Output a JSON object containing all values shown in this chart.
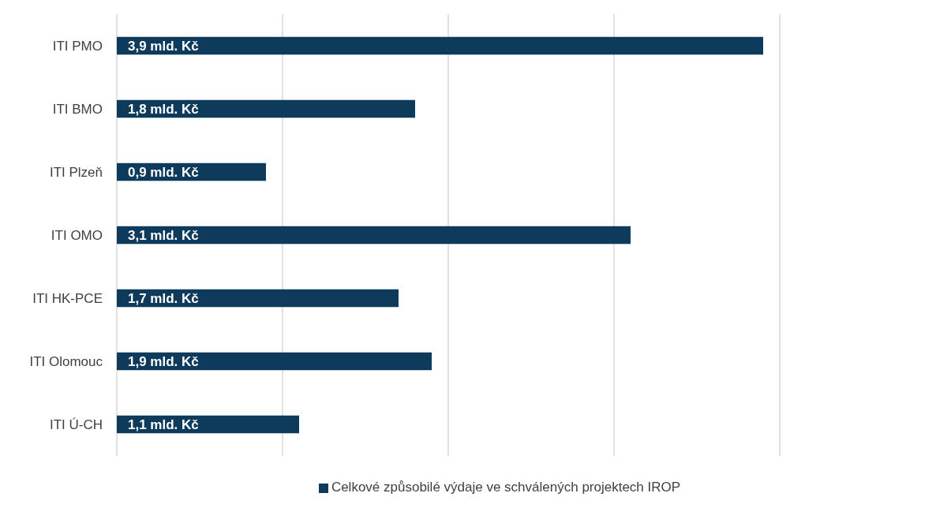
{
  "chart_data": {
    "type": "bar",
    "orientation": "horizontal",
    "categories": [
      "ITI PMO",
      "ITI BMO",
      "ITI Plzeň",
      "ITI OMO",
      "ITI HK-PCE",
      "ITI Olomouc",
      "ITI Ú-CH"
    ],
    "series": [
      {
        "name": "Celkové způsobilé výdaje ve schválených projektech IROP",
        "color": "#0e3a5c",
        "values": [
          3.9,
          1.8,
          0.9,
          3.1,
          1.7,
          1.9,
          1.1
        ],
        "value_labels": [
          "3,9 mld. Kč",
          "1,8 mld. Kč",
          "0,9 mld. Kč",
          "3,1 mld. Kč",
          "1,7 mld. Kč",
          "1,9 mld. Kč",
          "1,1 mld. Kč"
        ]
      }
    ],
    "xlim": [
      0,
      4
    ],
    "xticks": [
      {
        "value": 0,
        "label": null
      },
      {
        "value": 1,
        "label": null
      },
      {
        "value": 2,
        "label": null
      },
      {
        "value": 3,
        "label": null
      },
      {
        "value": 4,
        "label": null
      }
    ],
    "tick_labels": "y",
    "grid": "x",
    "legend": "bottom"
  }
}
